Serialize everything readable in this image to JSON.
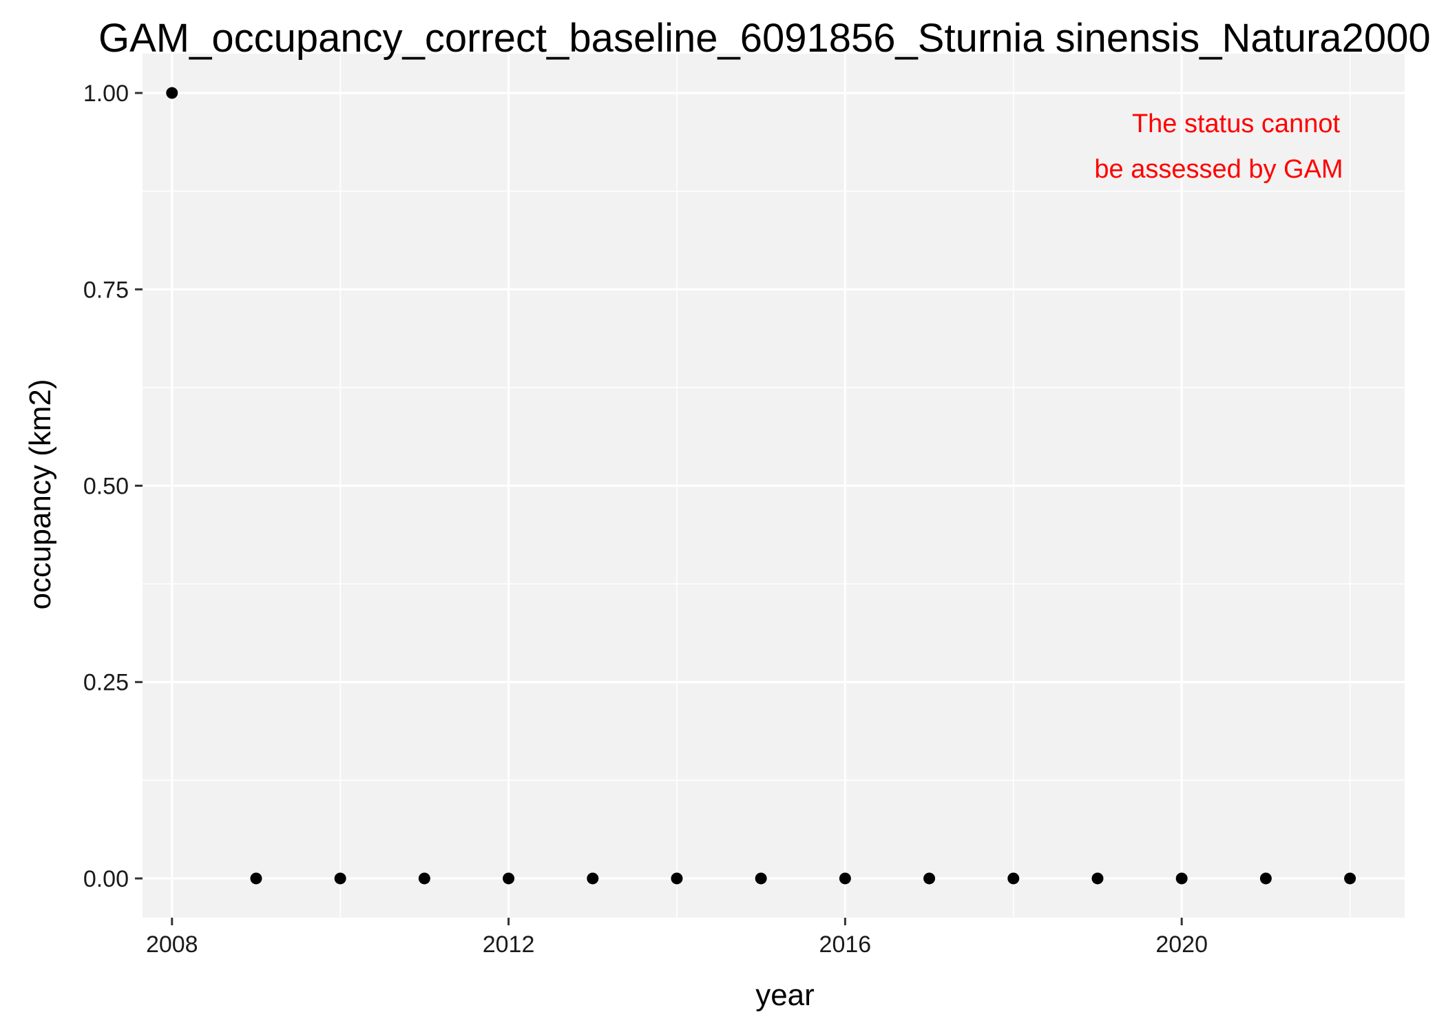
{
  "chart_data": {
    "type": "scatter",
    "title": "GAM_occupancy_correct_baseline_6091856_Sturnia sinensis_Natura2000",
    "xlabel": "year",
    "ylabel": "occupancy (km2)",
    "xlim": [
      2007.65,
      2022.65
    ],
    "ylim": [
      -0.05,
      1.05
    ],
    "x_ticks": [
      2008,
      2012,
      2016,
      2020
    ],
    "x_tick_labels": [
      "2008",
      "2012",
      "2016",
      "2020"
    ],
    "x_minor_ticks": [
      2010,
      2014,
      2018,
      2022
    ],
    "y_ticks": [
      0,
      0.25,
      0.5,
      0.75,
      1.0
    ],
    "y_tick_labels": [
      "0.00",
      "0.25",
      "0.50",
      "0.75",
      "1.00"
    ],
    "y_minor_ticks": [
      0.125,
      0.375,
      0.625,
      0.875
    ],
    "grid": true,
    "panel_background": "#f2f2f2",
    "grid_color": "#ffffff",
    "point_color": "#000000",
    "series": [
      {
        "x": [
          2008,
          2009,
          2010,
          2011,
          2012,
          2013,
          2014,
          2015,
          2016,
          2017,
          2018,
          2019,
          2020,
          2021,
          2022
        ],
        "y": [
          1,
          0,
          0,
          0,
          0,
          0,
          0,
          0,
          0,
          0,
          0,
          0,
          0,
          0,
          0
        ]
      }
    ],
    "annotation": {
      "lines": [
        "The status cannot",
        "be assessed by GAM"
      ],
      "color": "#ff0000",
      "placement": "top-right"
    }
  }
}
